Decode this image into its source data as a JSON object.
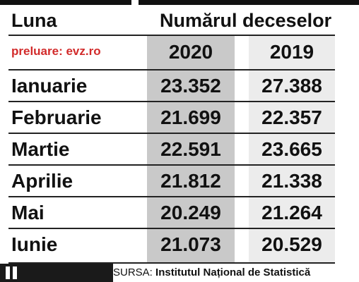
{
  "header": {
    "month_label": "Luna",
    "deaths_label": "Numărul deceselor",
    "credit": "preluare: evz.ro"
  },
  "chart_data": {
    "type": "table",
    "title": "",
    "columns": [
      "Luna",
      "2020",
      "2019"
    ],
    "years": [
      "2020",
      "2019"
    ],
    "rows": [
      {
        "month": "Ianuarie",
        "v2020": "23.352",
        "v2019": "27.388"
      },
      {
        "month": "Februarie",
        "v2020": "21.699",
        "v2019": "22.357"
      },
      {
        "month": "Martie",
        "v2020": "22.591",
        "v2019": "23.665"
      },
      {
        "month": "Aprilie",
        "v2020": "21.812",
        "v2019": "21.338"
      },
      {
        "month": "Mai",
        "v2020": "20.249",
        "v2019": "21.264"
      },
      {
        "month": "Iunie",
        "v2020": "21.073",
        "v2019": "20.529"
      }
    ]
  },
  "footer": {
    "source_label": "SURSA:",
    "source_org": "Institutul Național de Statistică"
  },
  "colors": {
    "credit": "#d22b2b",
    "col_2020": "#c9c9c9",
    "col_2019": "#ececec"
  }
}
